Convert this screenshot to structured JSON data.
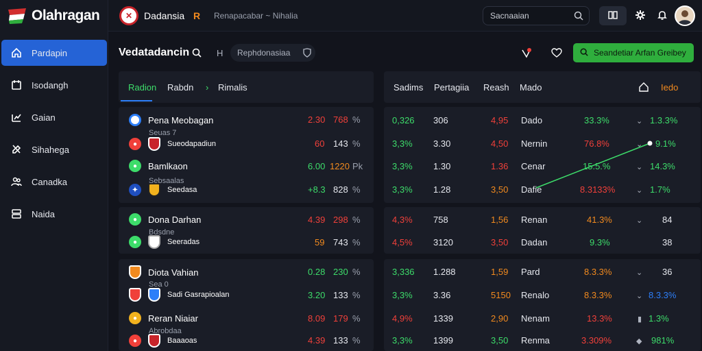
{
  "app": {
    "brand": "Olahragan"
  },
  "sidebar": {
    "items": [
      {
        "label": "Pardapin",
        "icon": "home-icon",
        "active": true
      },
      {
        "label": "Isodangh",
        "icon": "calendar-icon",
        "active": false
      },
      {
        "label": "Gaian",
        "icon": "chart-icon",
        "active": false
      },
      {
        "label": "Sihahega",
        "icon": "tools-icon",
        "active": false
      },
      {
        "label": "Canadka",
        "icon": "users-icon",
        "active": false
      },
      {
        "label": "Naida",
        "icon": "settings-icon",
        "active": false
      }
    ]
  },
  "topbar": {
    "title": "Dadansia",
    "accent": "R",
    "breadcrumb": "Renapacabar ~ Nihalia",
    "search_placeholder": "Sacnaaian"
  },
  "subbar": {
    "title": "Vedatadancin",
    "h_label": "H",
    "pill_label": "Rephdonasiaa",
    "green_button": "Seandetiar Arfan Greibey"
  },
  "tabs_left": [
    "Radion",
    "Rabdn",
    "Rimalis"
  ],
  "tabs_right": [
    "Sadims",
    "Pertagiia",
    "Reash",
    "Mado"
  ],
  "tabs_right_accent": "Iedo",
  "groups": [
    {
      "rows": [
        {
          "team": "Pena Meobagan",
          "badge_color": "#2d7ff9",
          "sub": "Seuas 7",
          "odds1": "2.30",
          "odds2": "768",
          "pct": "%",
          "c1": "0,326",
          "c1c": "green",
          "c2": "306",
          "c3": "4,95",
          "c3c": "red",
          "c4": "Dado",
          "c5": "33.3%",
          "c5c": "green",
          "c6": "1.3.3%",
          "c6c": "green"
        },
        {
          "team": "Sueodapadiun",
          "badge_color": "#f0403a",
          "sub": "",
          "odds1": "60",
          "odds2": "143",
          "pct": "%",
          "c1": "3,3%",
          "c1c": "green",
          "c2": "3.30",
          "c3": "4,50",
          "c3c": "red",
          "c4": "Nernin",
          "c5": "76.8%",
          "c5c": "red",
          "c6": "9.1%",
          "c6c": "green"
        },
        {
          "team": "Bamlkaon",
          "badge_color": "#3ddc6a",
          "sub": "",
          "odds1": "6.00",
          "odds2": "1220",
          "pct": "Pk",
          "c1": "3,3%",
          "c1c": "green",
          "c2": "1.30",
          "c3": "1.36",
          "c3c": "red",
          "c4": "Cenar",
          "c5": "15.5.%",
          "c5c": "green",
          "c6": "14.3%",
          "c6c": "green"
        },
        {
          "team": "Seedasa",
          "badge_color": "#2d7ff9",
          "sub": "Sebsaalas",
          "odds1": "+8.3",
          "odds2": "828",
          "pct": "%",
          "c1": "3,3%",
          "c1c": "green",
          "c2": "1.28",
          "c3": "3,50",
          "c3c": "orange",
          "c4": "Dafie",
          "c5": "8.3133%",
          "c5c": "red",
          "c6": "1.7%",
          "c6c": "green"
        }
      ]
    },
    {
      "rows": [
        {
          "team": "Dona Darhan",
          "badge_color": "#3ddc6a",
          "sub": "",
          "odds1": "4.39",
          "odds2": "298",
          "pct": "%",
          "c1": "4,3%",
          "c1c": "red",
          "c2": "758",
          "c3": "1,56",
          "c3c": "orange",
          "c4": "Renan",
          "c5": "41.3%",
          "c5c": "orange",
          "c6": "84",
          "c6c": "white"
        },
        {
          "team": "Seeradas",
          "badge_color": "#3ddc6a",
          "sub": "Bdsdne",
          "odds1": "59",
          "odds2": "743",
          "pct": "%",
          "c1": "4,5%",
          "c1c": "red",
          "c2": "3120",
          "c3": "3,50",
          "c3c": "red",
          "c4": "Dadan",
          "c5": "9.3%",
          "c5c": "green",
          "c6": "38",
          "c6c": "white"
        }
      ]
    },
    {
      "rows": [
        {
          "team": "Diota Vahian",
          "badge_color": "#f28a1e",
          "sub": "Sea 0",
          "odds1": "0.28",
          "odds2": "230",
          "pct": "%",
          "c1": "3,336",
          "c1c": "green",
          "c2": "1.288",
          "c3": "1,59",
          "c3c": "orange",
          "c4": "Pard",
          "c5": "8.3.3%",
          "c5c": "orange",
          "c6": "36",
          "c6c": "white"
        },
        {
          "team": "Sadi Gasrapioalan",
          "badge_color": "#f0403a",
          "sub": "",
          "odds1": "3.20",
          "odds2": "133",
          "pct": "%",
          "c1": "3,3%",
          "c1c": "green",
          "c2": "3.36",
          "c3": "5150",
          "c3c": "orange",
          "c4": "Renalo",
          "c5": "8.3.3%",
          "c5c": "orange",
          "c6": "8.3.3%",
          "c6c": "blue"
        },
        {
          "team": "Reran Niaiar",
          "badge_color": "#f2b21e",
          "sub": "",
          "odds1": "8.09",
          "odds2": "179",
          "pct": "%",
          "c1": "4,9%",
          "c1c": "red",
          "c2": "1339",
          "c3": "2,90",
          "c3c": "orange",
          "c4": "Nenam",
          "c5": "13.3%",
          "c5c": "red",
          "c6": "1.3%",
          "c6c": "green"
        },
        {
          "team": "Baaaoas",
          "badge_color": "#f0403a",
          "sub": "Abrobdaa",
          "odds1": "4.39",
          "odds2": "133",
          "pct": "%",
          "c1": "3,3%",
          "c1c": "green",
          "c2": "1399",
          "c3": "3,50",
          "c3c": "green",
          "c4": "Renma",
          "c5": "3.309%",
          "c5c": "red",
          "c6": "981%",
          "c6c": "green"
        }
      ]
    }
  ]
}
